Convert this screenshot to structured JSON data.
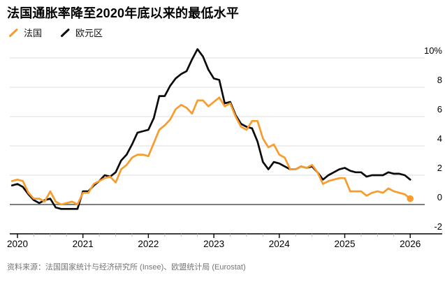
{
  "header": {
    "title": "法国通胀率降至2020年底以来的最低水平"
  },
  "legend": [
    {
      "label": "法国",
      "color": "#F79C2D",
      "marker": "slash-icon"
    },
    {
      "label": "欧元区",
      "color": "#0B0B0B",
      "marker": "slash-icon"
    }
  ],
  "chart_data": {
    "type": "line",
    "title": "法国通胀率降至2020年底以来的最低水平",
    "xlabel": "",
    "ylabel": "",
    "unit": "%",
    "x_start": 2019.9167,
    "x_step": "monthly",
    "x_end": "2026-01",
    "xticks": [
      2020,
      2021,
      2022,
      2023,
      2024,
      2025,
      2026
    ],
    "minor_xticks": "quarterly",
    "ylim": [
      -2,
      10
    ],
    "yticks": [
      {
        "v": -2,
        "label": "-2"
      },
      {
        "v": 0,
        "label": "0"
      },
      {
        "v": 2,
        "label": "2"
      },
      {
        "v": 4,
        "label": "4"
      },
      {
        "v": 6,
        "label": "6"
      },
      {
        "v": 8,
        "label": "8"
      },
      {
        "v": 10,
        "label": "10%"
      }
    ],
    "grid": "horizontal",
    "legend_position": "top-left",
    "series": [
      {
        "name": "法国",
        "color": "#F79C2D",
        "end_dot": true,
        "values": [
          1.6,
          1.7,
          1.6,
          0.8,
          0.4,
          0.4,
          0.2,
          0.9,
          0.2,
          0.0,
          0.1,
          0.2,
          0.0,
          0.8,
          0.8,
          1.4,
          1.6,
          1.8,
          1.9,
          1.5,
          2.4,
          2.7,
          3.2,
          3.4,
          3.4,
          3.3,
          4.2,
          5.1,
          5.4,
          5.8,
          6.5,
          6.8,
          6.6,
          6.2,
          7.1,
          7.1,
          6.7,
          7.0,
          7.3,
          6.7,
          6.9,
          6.0,
          5.3,
          5.1,
          5.7,
          5.7,
          4.5,
          3.9,
          4.1,
          3.4,
          3.2,
          2.4,
          2.4,
          2.6,
          2.5,
          2.7,
          2.2,
          1.4,
          1.6,
          1.7,
          1.8,
          1.8,
          0.9,
          0.9,
          0.9,
          0.6,
          0.8,
          0.9,
          0.8,
          1.1,
          0.9,
          0.8,
          0.7,
          0.4
        ]
      },
      {
        "name": "欧元区",
        "color": "#0B0B0B",
        "end_dot": false,
        "values": [
          1.3,
          1.4,
          1.2,
          0.7,
          0.3,
          0.1,
          0.3,
          0.4,
          -0.2,
          -0.3,
          -0.3,
          -0.3,
          -0.3,
          0.9,
          0.9,
          1.3,
          1.6,
          2.0,
          1.9,
          2.2,
          3.0,
          3.4,
          4.1,
          4.9,
          5.0,
          5.1,
          5.9,
          7.4,
          7.4,
          8.1,
          8.6,
          8.9,
          9.1,
          9.9,
          10.6,
          10.1,
          9.2,
          8.6,
          8.5,
          6.9,
          7.0,
          6.1,
          5.5,
          5.3,
          5.2,
          4.3,
          2.9,
          2.4,
          2.9,
          2.8,
          2.6,
          2.4,
          2.4,
          2.6,
          2.5,
          2.6,
          2.2,
          1.7,
          2.0,
          2.2,
          2.4,
          2.5,
          2.3,
          2.2,
          2.2,
          1.9,
          2.0,
          2.0,
          2.0,
          2.2,
          2.1,
          2.1,
          2.0,
          1.7
        ]
      }
    ],
    "style": {
      "grid_color": "#DCDCDC",
      "zero_line_color": "#7F7F7F",
      "axis_color": "#000000",
      "minor_tick_color": "#B5B5B5"
    }
  },
  "source": {
    "text": "资料来源：法国国家统计与经济研究所 (Insee)、欧盟统计局 (Eurostat)"
  }
}
